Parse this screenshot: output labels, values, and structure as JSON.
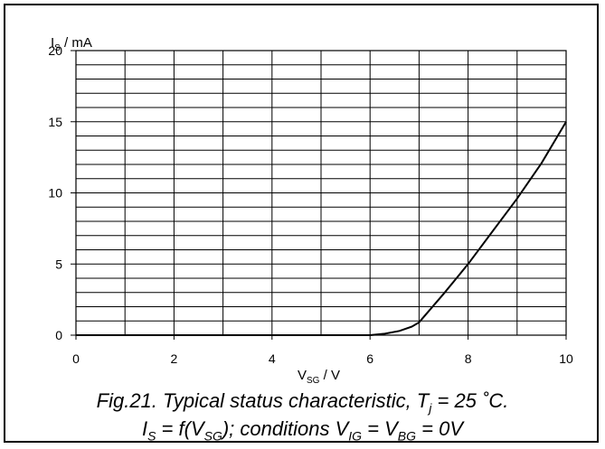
{
  "chart_data": {
    "type": "line",
    "ylabel_main": "I",
    "ylabel_sub": "S",
    "ylabel_unit": " /  mA",
    "xlabel_main": "V",
    "xlabel_sub": "SG",
    "xlabel_unit": " /  V",
    "xlim": [
      0,
      10
    ],
    "ylim": [
      0,
      20
    ],
    "xticks": [
      0,
      2,
      4,
      6,
      8,
      10
    ],
    "yticks": [
      0,
      5,
      10,
      15,
      20
    ],
    "grid": true,
    "series": [
      {
        "x": [
          0,
          1,
          2,
          3,
          4,
          5,
          6,
          6.3,
          6.6,
          6.85,
          7.0,
          7.5,
          8.0,
          8.5,
          9.0,
          9.5,
          10.0
        ],
        "y": [
          0,
          0,
          0,
          0,
          0,
          0,
          0,
          0.1,
          0.3,
          0.6,
          0.9,
          2.9,
          5.0,
          7.3,
          9.6,
          12.1,
          15.0
        ]
      }
    ]
  },
  "caption": {
    "line1_prefix": "Fig.21.   Typical status characteristic, T",
    "line1_sub": "j",
    "line1_suffix": " = 25 ˚C.",
    "line2_a": "I",
    "line2_a_sub": "S",
    "line2_b": " = f(V",
    "line2_b_sub": "SG",
    "line2_c": "); conditions V",
    "line2_c_sub": "IG",
    "line2_d": " = V",
    "line2_d_sub": "BG",
    "line2_e": " = 0V"
  }
}
